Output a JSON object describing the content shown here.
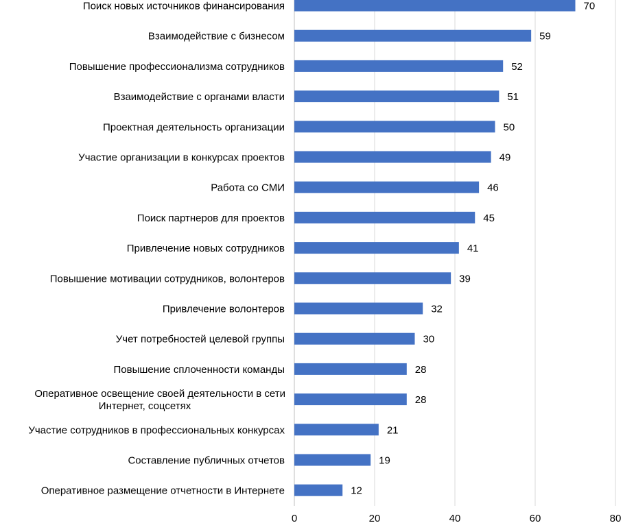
{
  "chart_data": {
    "type": "bar",
    "orientation": "horizontal",
    "title": "",
    "xlabel": "",
    "ylabel": "",
    "xlim": [
      0,
      80
    ],
    "x_ticks": [
      0,
      20,
      40,
      60,
      80
    ],
    "grid": true,
    "bar_color": "#4472c4",
    "categories": [
      [
        "Поиск новых источников финансирования"
      ],
      [
        "Взаимодействие с бизнесом"
      ],
      [
        "Повышение профессионализма сотрудников"
      ],
      [
        "Взаимодействие с органами власти"
      ],
      [
        "Проектная деятельность организации"
      ],
      [
        "Участие организации в конкурсах проектов"
      ],
      [
        "Работа со СМИ"
      ],
      [
        "Поиск партнеров для проектов"
      ],
      [
        "Привлечение новых сотрудников"
      ],
      [
        "Повышение мотивации сотрудников, волонтеров"
      ],
      [
        "Привлечение волонтеров"
      ],
      [
        "Учет потребностей целевой группы"
      ],
      [
        "Повышение сплоченности команды"
      ],
      [
        "Оперативное освещение своей деятельности в сети",
        "Интернет, соцсетях"
      ],
      [
        "Участие сотрудников в профессиональных конкурсах"
      ],
      [
        "Составление публичных отчетов"
      ],
      [
        "Оперативное размещение отчетности в Интернете"
      ]
    ],
    "values": [
      70,
      59,
      52,
      51,
      50,
      49,
      46,
      45,
      41,
      39,
      32,
      30,
      28,
      28,
      21,
      19,
      12
    ]
  }
}
